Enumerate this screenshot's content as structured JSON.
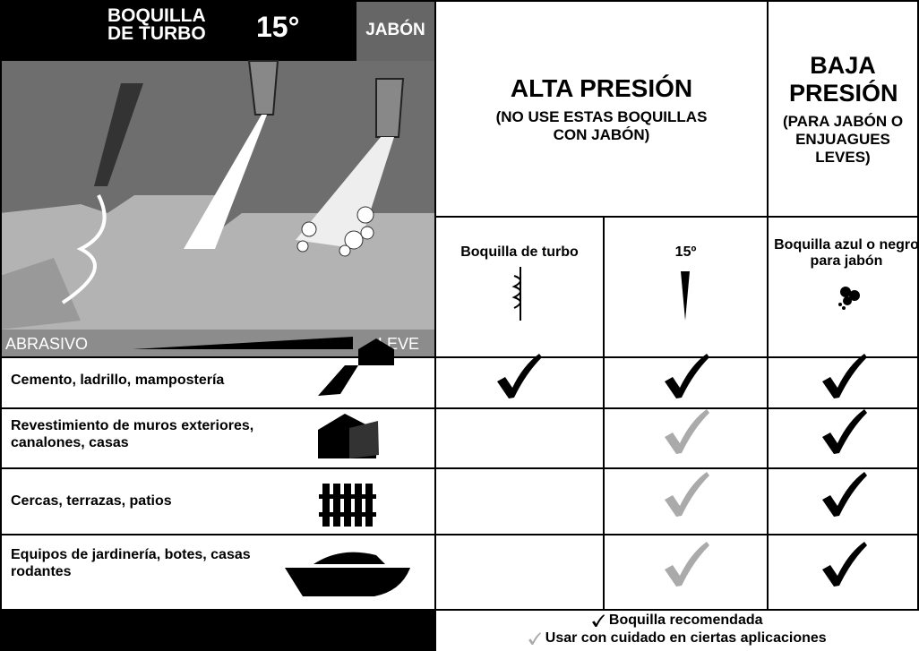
{
  "panel": {
    "nozzle_title": [
      "BOQUILLA",
      "DE TURBO"
    ],
    "angle": "15°",
    "soap": "JABÓN",
    "scale": {
      "left": "ABRASIVO",
      "right": "LEVE"
    }
  },
  "high_pressure": {
    "title": "ALTA PRESIÓN",
    "note": "(NO USE ESTAS BOQUILLAS CON JABÓN)"
  },
  "low_pressure": {
    "title": "BAJA PRESIÓN",
    "note": "(PARA JABÓN O ENJUAGUES LEVES)"
  },
  "nozzles": [
    "Boquilla de turbo",
    "15º",
    "Boquilla azul o negro para jabón"
  ],
  "rows": [
    "Cemento, ladrillo, mampostería",
    "Revestimiento de muros exteriores, canalones, casas",
    "Cercas, terrazas, patios",
    "Equipos de jardinería, botes, casas rodantes"
  ],
  "legend": [
    "Boquilla recomendada",
    "Usar con cuidado en ciertas aplicaciones"
  ]
}
